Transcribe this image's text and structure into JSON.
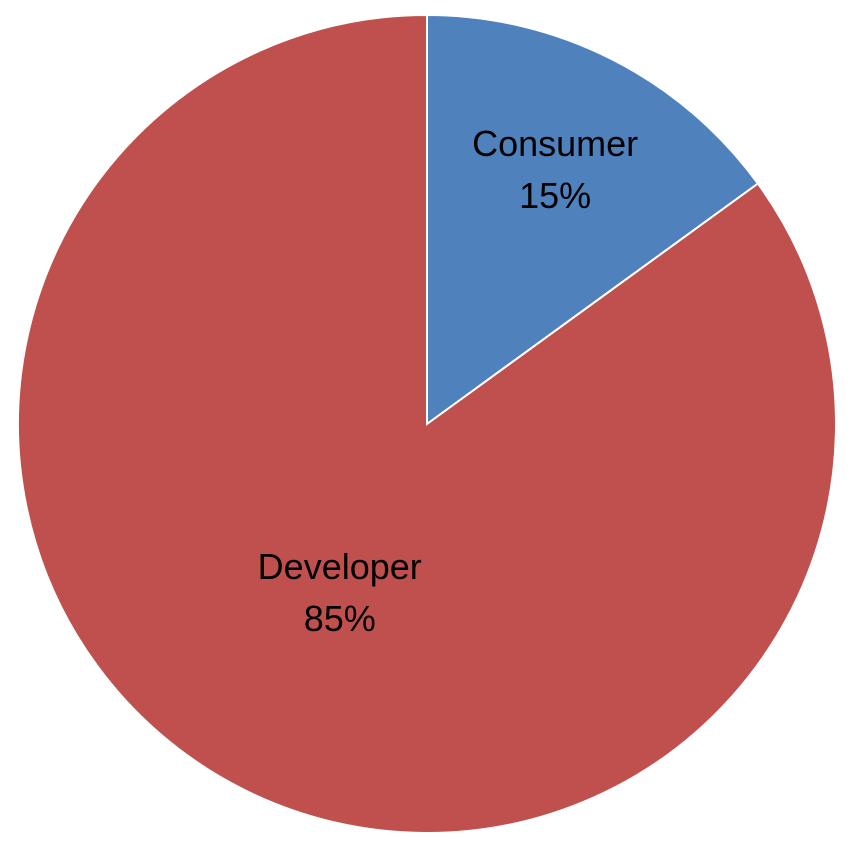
{
  "chart_data": {
    "type": "pie",
    "categories": [
      "Consumer",
      "Developer"
    ],
    "values": [
      15,
      85
    ],
    "value_labels": [
      "15%",
      "85%"
    ],
    "colors": [
      "#4f81bd",
      "#c0504d"
    ]
  }
}
